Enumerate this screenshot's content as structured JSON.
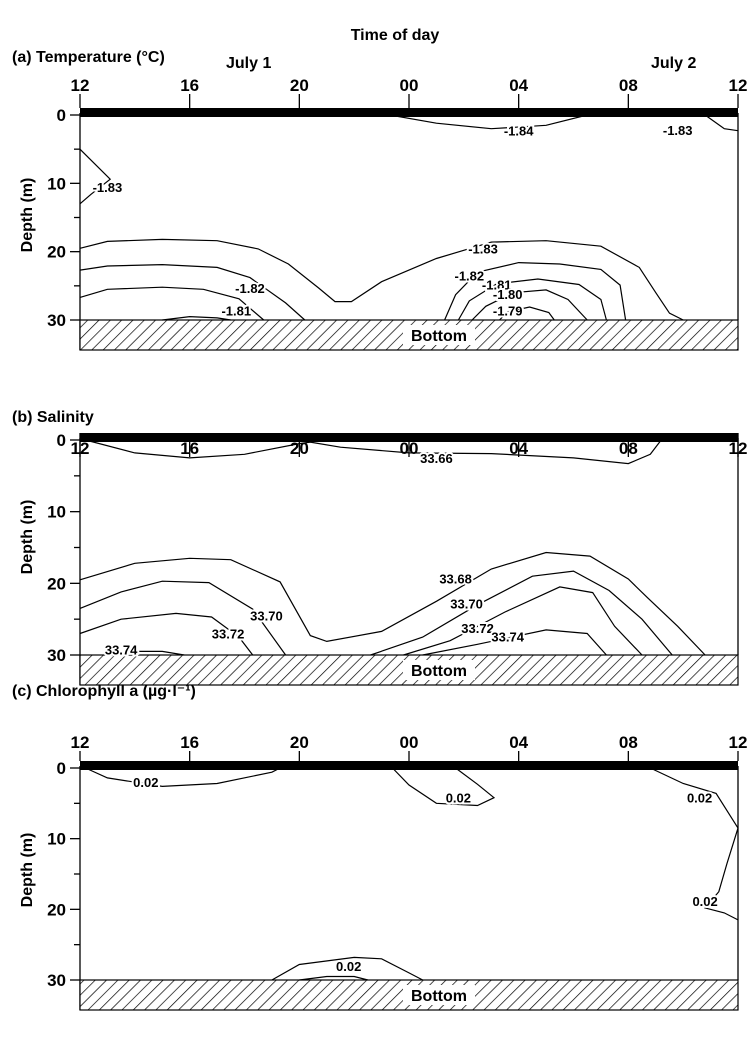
{
  "figure": {
    "title": "Time of day",
    "bottom_label": "Bottom",
    "day_labels": [
      "July 1",
      "July 2"
    ]
  },
  "chart_data": [
    {
      "id": "a",
      "type": "contour",
      "title": "(a) Temperature (°C)",
      "xlabel": "",
      "ylabel": "Depth (m)",
      "x_ticks": [
        "12",
        "16",
        "20",
        "00",
        "04",
        "08",
        "12"
      ],
      "y_ticks": [
        0,
        10,
        20,
        30
      ],
      "xlim": [
        12,
        36
      ],
      "ylim": [
        0,
        30
      ],
      "bottom_depth_m": 30,
      "contour_labels": [
        {
          "text": "-1.84",
          "x": 28.0,
          "y": 2.3
        },
        {
          "text": "-1.83",
          "x": 33.8,
          "y": 2.2
        },
        {
          "text": "-1.83",
          "x": 13.0,
          "y": 10.5
        },
        {
          "text": "-1.83",
          "x": 26.7,
          "y": 19.5
        },
        {
          "text": "-1.82",
          "x": 18.2,
          "y": 25.3
        },
        {
          "text": "-1.82",
          "x": 26.2,
          "y": 23.5
        },
        {
          "text": "-1.81",
          "x": 17.7,
          "y": 28.6
        },
        {
          "text": "-1.81",
          "x": 27.2,
          "y": 24.8
        },
        {
          "text": "-1.80",
          "x": 27.6,
          "y": 26.2
        },
        {
          "text": "-1.79",
          "x": 27.6,
          "y": 28.6
        }
      ],
      "contours": [
        [
          [
            23.3,
            0
          ],
          [
            25.0,
            1.2
          ],
          [
            27.0,
            2.0
          ],
          [
            29.0,
            1.5
          ],
          [
            30.5,
            0
          ]
        ],
        [
          [
            34.8,
            0
          ],
          [
            35.5,
            2.0
          ],
          [
            36,
            2.3
          ]
        ],
        [
          [
            12,
            5
          ],
          [
            12.5,
            7
          ],
          [
            13.1,
            9.4
          ],
          [
            12.4,
            11.6
          ],
          [
            12,
            13
          ]
        ],
        [
          [
            12,
            19.5
          ],
          [
            13,
            18.5
          ],
          [
            15,
            18.2
          ],
          [
            17,
            18.4
          ],
          [
            18.5,
            19.6
          ],
          [
            19.6,
            21.8
          ],
          [
            20.7,
            25.3
          ],
          [
            21.3,
            27.3
          ],
          [
            21.9,
            27.3
          ],
          [
            23.0,
            24.4
          ],
          [
            25.0,
            21.0
          ],
          [
            27.0,
            18.6
          ],
          [
            29.0,
            18.4
          ],
          [
            31.0,
            19.2
          ],
          [
            32.4,
            22.3
          ],
          [
            33.0,
            26.0
          ],
          [
            33.5,
            29.0
          ],
          [
            34.0,
            30
          ]
        ],
        [
          [
            12,
            22.7
          ],
          [
            13,
            22.1
          ],
          [
            15,
            21.9
          ],
          [
            17,
            22.3
          ],
          [
            18.2,
            23.8
          ],
          [
            19.5,
            27.5
          ],
          [
            20.2,
            30
          ]
        ],
        [
          [
            25.3,
            30
          ],
          [
            25.7,
            26.3
          ],
          [
            26.5,
            23.0
          ],
          [
            28.0,
            21.6
          ],
          [
            29.5,
            21.8
          ],
          [
            31.0,
            22.6
          ],
          [
            31.7,
            24.9
          ],
          [
            31.9,
            30
          ]
        ],
        [
          [
            12,
            26.7
          ],
          [
            13,
            25.5
          ],
          [
            15,
            25.2
          ],
          [
            16.5,
            25.5
          ],
          [
            17.8,
            26.9
          ],
          [
            18.7,
            30
          ]
        ],
        [
          [
            25.8,
            30
          ],
          [
            26.2,
            27.2
          ],
          [
            27.2,
            24.7
          ],
          [
            28.7,
            24.0
          ],
          [
            30.2,
            24.8
          ],
          [
            31.0,
            27.0
          ],
          [
            31.2,
            30
          ]
        ],
        [
          [
            15.0,
            30
          ],
          [
            16.0,
            29.5
          ],
          [
            17.0,
            29.7
          ],
          [
            17.5,
            30
          ]
        ],
        [
          [
            26.3,
            30
          ],
          [
            26.8,
            28.0
          ],
          [
            27.8,
            26.0
          ],
          [
            29.0,
            25.6
          ],
          [
            29.8,
            27.0
          ],
          [
            30.5,
            30
          ]
        ],
        [
          [
            27.3,
            30
          ],
          [
            27.6,
            28.8
          ],
          [
            28.4,
            28.1
          ],
          [
            29.1,
            28.9
          ],
          [
            29.3,
            30
          ]
        ]
      ]
    },
    {
      "id": "b",
      "type": "contour",
      "title": "(b) Salinity",
      "xlabel": "",
      "ylabel": "Depth (m)",
      "x_ticks": [
        "12",
        "16",
        "20",
        "00",
        "04",
        "08",
        "12"
      ],
      "y_ticks": [
        0,
        10,
        20,
        30
      ],
      "xlim": [
        12,
        36
      ],
      "ylim": [
        0,
        30
      ],
      "bottom_depth_m": 30,
      "contour_labels": [
        {
          "text": "33.66",
          "x": 25.0,
          "y": 2.5
        },
        {
          "text": "33.68",
          "x": 25.7,
          "y": 19.3
        },
        {
          "text": "33.70",
          "x": 18.8,
          "y": 24.5
        },
        {
          "text": "33.70",
          "x": 26.1,
          "y": 22.8
        },
        {
          "text": "33.72",
          "x": 17.4,
          "y": 27.0
        },
        {
          "text": "33.72",
          "x": 26.5,
          "y": 26.2
        },
        {
          "text": "33.74",
          "x": 13.5,
          "y": 29.2
        },
        {
          "text": "33.74",
          "x": 27.6,
          "y": 27.4
        }
      ],
      "contours": [
        [
          [
            12.2,
            0
          ],
          [
            14,
            1.8
          ],
          [
            16,
            2.5
          ],
          [
            18,
            2.0
          ],
          [
            20.0,
            0.5
          ],
          [
            20.4,
            0.3
          ],
          [
            21.5,
            1.0
          ],
          [
            24,
            1.8
          ],
          [
            27,
            1.9
          ],
          [
            30,
            2.5
          ],
          [
            32.0,
            3.3
          ],
          [
            32.8,
            2.0
          ],
          [
            33.2,
            0
          ]
        ],
        [
          [
            12,
            19.5
          ],
          [
            14,
            17.2
          ],
          [
            16,
            16.5
          ],
          [
            17.5,
            16.7
          ],
          [
            19.3,
            19.8
          ],
          [
            20.4,
            27.3
          ],
          [
            21,
            28.1
          ],
          [
            23,
            26.7
          ],
          [
            25,
            22.5
          ],
          [
            27,
            18.0
          ],
          [
            29.0,
            15.7
          ],
          [
            30.6,
            16.2
          ],
          [
            32.0,
            19.4
          ],
          [
            32.7,
            22.0
          ],
          [
            33.8,
            26.0
          ],
          [
            34.8,
            30
          ]
        ],
        [
          [
            12,
            23.5
          ],
          [
            13.5,
            21.2
          ],
          [
            15,
            19.7
          ],
          [
            16.7,
            19.9
          ],
          [
            18.3,
            23.6
          ],
          [
            19.5,
            30
          ]
        ],
        [
          [
            22.6,
            30
          ],
          [
            24.5,
            27.5
          ],
          [
            26.5,
            23.0
          ],
          [
            28.5,
            19.0
          ],
          [
            30.0,
            18.3
          ],
          [
            31.3,
            21.0
          ],
          [
            32.5,
            25.0
          ],
          [
            33.6,
            30
          ]
        ],
        [
          [
            12,
            27.0
          ],
          [
            13.5,
            25.0
          ],
          [
            15.5,
            24.2
          ],
          [
            16.8,
            24.7
          ],
          [
            17.8,
            27.5
          ],
          [
            18.3,
            30
          ]
        ],
        [
          [
            23.8,
            30
          ],
          [
            25.5,
            28.0
          ],
          [
            27.5,
            24.0
          ],
          [
            29.5,
            20.5
          ],
          [
            30.7,
            21.3
          ],
          [
            31.5,
            26.0
          ],
          [
            32.5,
            30
          ]
        ],
        [
          [
            13.0,
            30
          ],
          [
            14.0,
            29.5
          ],
          [
            15.0,
            29.5
          ],
          [
            15.8,
            30
          ]
        ],
        [
          [
            24.5,
            30
          ],
          [
            26.5,
            28.5
          ],
          [
            29.0,
            26.5
          ],
          [
            30.5,
            27.0
          ],
          [
            31.2,
            30
          ]
        ]
      ]
    },
    {
      "id": "c",
      "type": "contour",
      "title": "(c) Chlorophyll a (µg·l⁻¹)",
      "xlabel": "",
      "ylabel": "Depth (m)",
      "x_ticks": [
        "12",
        "16",
        "20",
        "00",
        "04",
        "08",
        "12"
      ],
      "y_ticks": [
        0,
        10,
        20,
        30
      ],
      "xlim": [
        12,
        36
      ],
      "ylim": [
        0,
        30
      ],
      "bottom_depth_m": 30,
      "contour_labels": [
        {
          "text": "0.02",
          "x": 14.4,
          "y": 2.0
        },
        {
          "text": "0.02",
          "x": 25.8,
          "y": 4.2
        },
        {
          "text": "0.02",
          "x": 34.6,
          "y": 4.2
        },
        {
          "text": "0.02",
          "x": 34.8,
          "y": 18.8
        },
        {
          "text": "0.02",
          "x": 21.8,
          "y": 28.0
        }
      ],
      "contours": [
        [
          [
            12.2,
            0
          ],
          [
            13.0,
            1.4
          ],
          [
            15.0,
            2.6
          ],
          [
            17.0,
            2.2
          ],
          [
            19.0,
            0.6
          ],
          [
            19.3,
            0
          ]
        ],
        [
          [
            23.4,
            0
          ],
          [
            24.0,
            2.4
          ],
          [
            25.0,
            5.0
          ],
          [
            26.5,
            5.3
          ],
          [
            27.1,
            4.2
          ],
          [
            26.5,
            2.3
          ],
          [
            25.7,
            0
          ]
        ],
        [
          [
            32.8,
            0
          ],
          [
            34.0,
            2.2
          ],
          [
            35.2,
            3.6
          ],
          [
            36,
            8.5
          ],
          [
            35.6,
            13.5
          ],
          [
            35.3,
            17.5
          ],
          [
            34.8,
            19.8
          ],
          [
            35.5,
            20.5
          ],
          [
            36,
            21.5
          ]
        ],
        [
          [
            19.0,
            30
          ],
          [
            20.0,
            27.8
          ],
          [
            22.0,
            26.8
          ],
          [
            23.0,
            27.0
          ],
          [
            24.0,
            29.0
          ],
          [
            24.5,
            30
          ]
        ],
        [
          [
            20.0,
            30
          ],
          [
            21.0,
            29.5
          ],
          [
            22.0,
            29.5
          ],
          [
            22.5,
            30
          ]
        ]
      ]
    }
  ]
}
